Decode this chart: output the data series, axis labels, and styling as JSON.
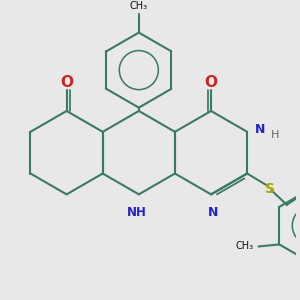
{
  "bg_color": "#e8e8e8",
  "bond_color": "#3a7a62",
  "N_color": "#2222cc",
  "O_color": "#cc2222",
  "S_color": "#aaaa00",
  "lw": 1.5,
  "figsize": [
    3.0,
    3.0
  ],
  "dpi": 100,
  "xlim": [
    -1.5,
    5.5
  ],
  "ylim": [
    -3.5,
    3.5
  ]
}
